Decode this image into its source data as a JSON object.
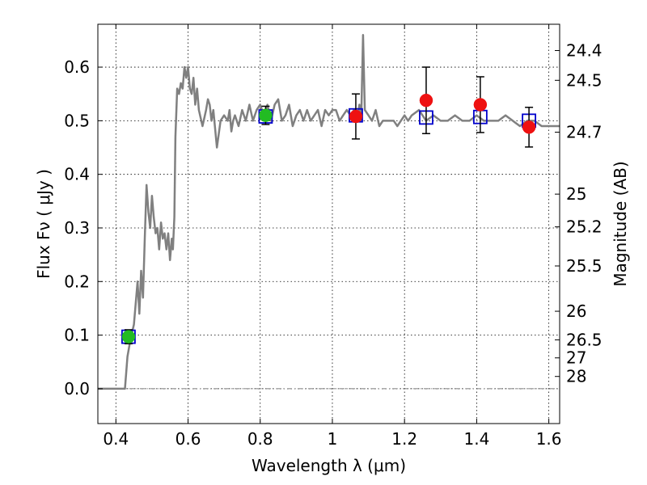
{
  "chart_data": {
    "type": "scatter",
    "title": "",
    "xlabel": "Wavelength  λ (μm)",
    "ylabel": "Flux  Fν  ( μJy )",
    "y2label": "Magnitude (AB)",
    "xlim": [
      0.35,
      1.63
    ],
    "ylim": [
      -0.065,
      0.68
    ],
    "grid": true,
    "legend": "none",
    "xticks": [
      {
        "value": 0.4,
        "label": "0.4"
      },
      {
        "value": 0.6,
        "label": "0.6"
      },
      {
        "value": 0.8,
        "label": "0.8"
      },
      {
        "value": 1.0,
        "label": "1"
      },
      {
        "value": 1.2,
        "label": "1.2"
      },
      {
        "value": 1.4,
        "label": "1.4"
      },
      {
        "value": 1.6,
        "label": "1.6"
      }
    ],
    "yticks": [
      {
        "value": 0.0,
        "label": "0.0"
      },
      {
        "value": 0.1,
        "label": "0.1"
      },
      {
        "value": 0.2,
        "label": "0.2"
      },
      {
        "value": 0.3,
        "label": "0.3"
      },
      {
        "value": 0.4,
        "label": "0.4"
      },
      {
        "value": 0.5,
        "label": "0.5"
      },
      {
        "value": 0.6,
        "label": "0.6"
      }
    ],
    "y2ticks": [
      {
        "value": 24.4,
        "label": "24.4"
      },
      {
        "value": 24.5,
        "label": "24.5"
      },
      {
        "value": 24.7,
        "label": "24.7"
      },
      {
        "value": 25,
        "label": "25"
      },
      {
        "value": 25.2,
        "label": "25.2"
      },
      {
        "value": 25.5,
        "label": "25.5"
      },
      {
        "value": 26,
        "label": "26"
      },
      {
        "value": 26.5,
        "label": "26.5"
      },
      {
        "value": 27,
        "label": "27"
      },
      {
        "value": 28,
        "label": "28"
      }
    ],
    "model_spectrum": {
      "color": "#808080",
      "x": [
        0.35,
        0.395,
        0.425,
        0.432,
        0.44,
        0.45,
        0.46,
        0.465,
        0.47,
        0.475,
        0.48,
        0.485,
        0.49,
        0.495,
        0.5,
        0.505,
        0.51,
        0.515,
        0.52,
        0.525,
        0.53,
        0.535,
        0.54,
        0.545,
        0.55,
        0.555,
        0.558,
        0.562,
        0.565,
        0.57,
        0.575,
        0.58,
        0.585,
        0.59,
        0.595,
        0.6,
        0.605,
        0.61,
        0.615,
        0.62,
        0.625,
        0.63,
        0.64,
        0.65,
        0.655,
        0.66,
        0.665,
        0.67,
        0.68,
        0.69,
        0.7,
        0.71,
        0.715,
        0.72,
        0.725,
        0.73,
        0.74,
        0.75,
        0.76,
        0.77,
        0.78,
        0.79,
        0.8,
        0.81,
        0.82,
        0.83,
        0.84,
        0.85,
        0.86,
        0.87,
        0.88,
        0.89,
        0.9,
        0.91,
        0.92,
        0.93,
        0.94,
        0.95,
        0.96,
        0.97,
        0.98,
        0.99,
        1.0,
        1.01,
        1.02,
        1.03,
        1.04,
        1.05,
        1.06,
        1.07,
        1.075,
        1.08,
        1.085,
        1.09,
        1.1,
        1.11,
        1.12,
        1.13,
        1.14,
        1.15,
        1.16,
        1.17,
        1.18,
        1.19,
        1.2,
        1.21,
        1.22,
        1.24,
        1.26,
        1.28,
        1.3,
        1.32,
        1.34,
        1.36,
        1.38,
        1.4,
        1.42,
        1.44,
        1.46,
        1.48,
        1.5,
        1.52,
        1.54,
        1.56,
        1.58,
        1.6,
        1.63
      ],
      "y": [
        0.0,
        0.0,
        0.0,
        0.06,
        0.09,
        0.12,
        0.2,
        0.14,
        0.22,
        0.17,
        0.28,
        0.38,
        0.33,
        0.3,
        0.36,
        0.32,
        0.29,
        0.3,
        0.26,
        0.31,
        0.28,
        0.29,
        0.26,
        0.29,
        0.24,
        0.28,
        0.26,
        0.32,
        0.47,
        0.56,
        0.55,
        0.57,
        0.56,
        0.6,
        0.58,
        0.6,
        0.56,
        0.55,
        0.58,
        0.53,
        0.56,
        0.52,
        0.49,
        0.52,
        0.54,
        0.53,
        0.5,
        0.52,
        0.45,
        0.5,
        0.51,
        0.5,
        0.52,
        0.48,
        0.5,
        0.51,
        0.49,
        0.52,
        0.5,
        0.53,
        0.5,
        0.52,
        0.53,
        0.51,
        0.53,
        0.5,
        0.53,
        0.54,
        0.5,
        0.51,
        0.53,
        0.49,
        0.51,
        0.52,
        0.5,
        0.52,
        0.5,
        0.51,
        0.52,
        0.49,
        0.52,
        0.51,
        0.52,
        0.52,
        0.5,
        0.51,
        0.52,
        0.51,
        0.52,
        0.51,
        0.53,
        0.5,
        0.66,
        0.52,
        0.51,
        0.5,
        0.52,
        0.49,
        0.5,
        0.5,
        0.5,
        0.5,
        0.49,
        0.5,
        0.51,
        0.5,
        0.51,
        0.52,
        0.5,
        0.51,
        0.5,
        0.5,
        0.51,
        0.5,
        0.5,
        0.51,
        0.5,
        0.5,
        0.5,
        0.51,
        0.5,
        0.49,
        0.5,
        0.5,
        0.49,
        0.49,
        0.49
      ]
    },
    "model_points": {
      "color": "#0000cc",
      "x": [
        0.435,
        0.815,
        1.065,
        1.26,
        1.41,
        1.545
      ],
      "y": [
        0.097,
        0.508,
        0.51,
        0.506,
        0.507,
        0.5
      ]
    },
    "observed_points": [
      {
        "x": 0.435,
        "y": 0.097,
        "err": 0.013,
        "color": "#22bb22"
      },
      {
        "x": 0.815,
        "y": 0.51,
        "err": 0.017,
        "color": "#22bb22"
      },
      {
        "x": 1.065,
        "y": 0.508,
        "err": 0.042,
        "color": "#ee1111"
      },
      {
        "x": 1.26,
        "y": 0.538,
        "err": 0.062,
        "color": "#ee1111"
      },
      {
        "x": 1.41,
        "y": 0.53,
        "err": 0.052,
        "color": "#ee1111"
      },
      {
        "x": 1.545,
        "y": 0.488,
        "err": 0.037,
        "color": "#ee1111"
      }
    ]
  }
}
